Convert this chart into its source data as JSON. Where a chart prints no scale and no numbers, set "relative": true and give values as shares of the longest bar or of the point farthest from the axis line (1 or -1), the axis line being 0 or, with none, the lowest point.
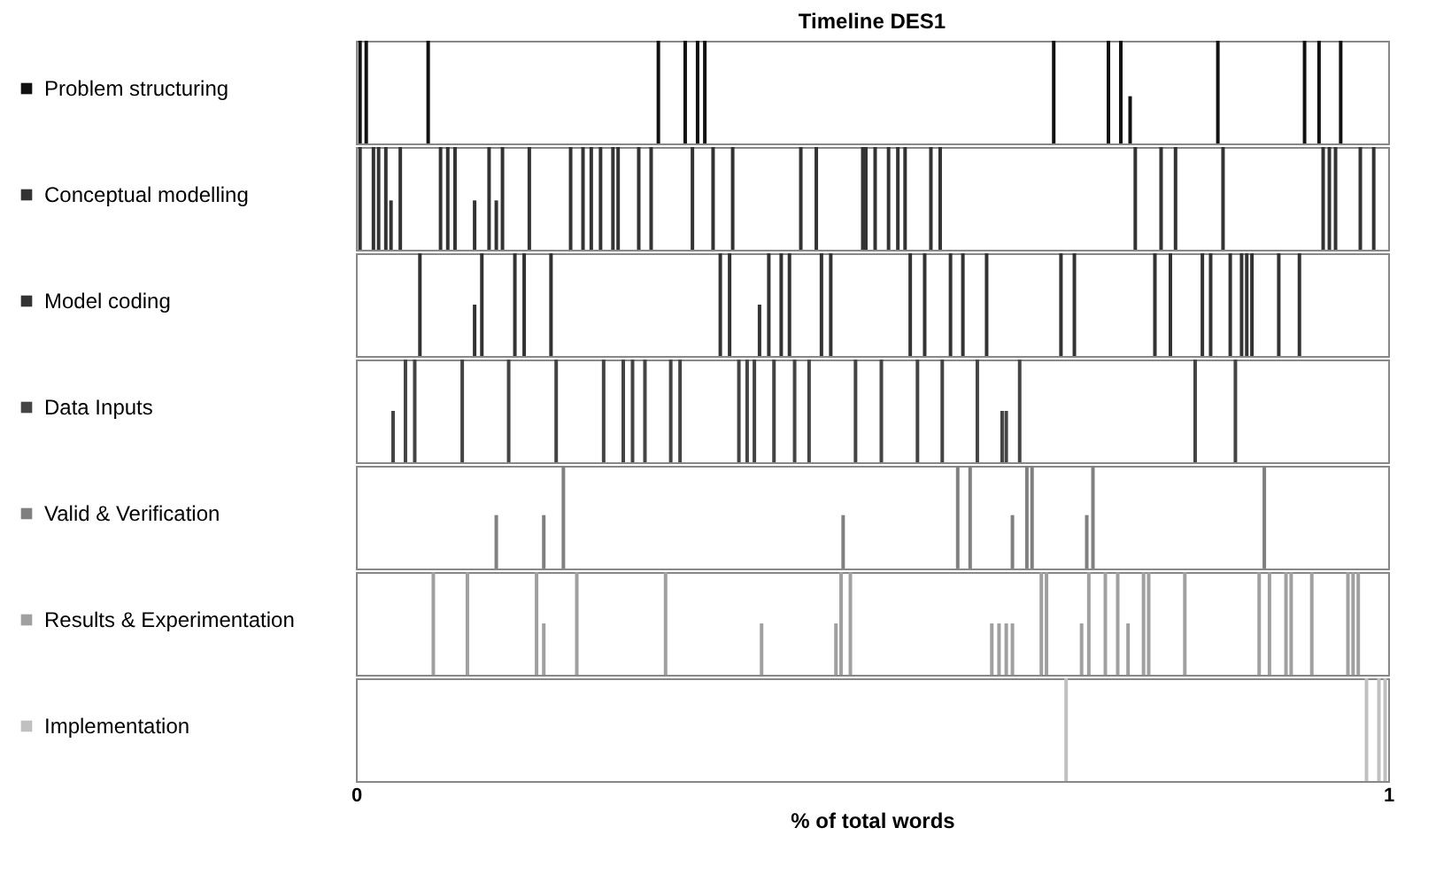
{
  "chart_data": [
    {
      "type": "bar",
      "relative": true,
      "title": "Timeline DES1",
      "xlim": [
        0,
        1
      ],
      "tick_labels": false,
      "legend": "left",
      "x": [
        0.004,
        0.01,
        0.07,
        0.293,
        0.319,
        0.331,
        0.338,
        0.676,
        0.729,
        0.741,
        0.75,
        0.835,
        0.919,
        0.933,
        0.954
      ],
      "series": [
        {
          "name": "Problem structuring",
          "color": "#111111",
          "values": [
            1,
            1,
            1,
            1,
            1,
            1,
            1,
            1,
            1,
            1,
            0.46,
            1,
            1,
            1,
            1
          ]
        }
      ]
    },
    {
      "type": "bar",
      "relative": true,
      "xlim": [
        0,
        1
      ],
      "tick_labels": false,
      "legend": "left",
      "x": [
        0.004,
        0.017,
        0.022,
        0.029,
        0.034,
        0.043,
        0.082,
        0.089,
        0.096,
        0.115,
        0.129,
        0.136,
        0.142,
        0.168,
        0.208,
        0.22,
        0.228,
        0.237,
        0.249,
        0.254,
        0.274,
        0.286,
        0.326,
        0.346,
        0.365,
        0.431,
        0.446,
        0.491,
        0.494,
        0.503,
        0.516,
        0.525,
        0.532,
        0.557,
        0.566,
        0.755,
        0.78,
        0.794,
        0.84,
        0.937,
        0.943,
        0.949,
        0.973,
        0.986
      ],
      "series": [
        {
          "name": "Conceptual modelling",
          "color": "#333333",
          "values": [
            1,
            1,
            1,
            1,
            0.48,
            1,
            1,
            1,
            1,
            0.48,
            1,
            0.48,
            1,
            1,
            1,
            1,
            1,
            1,
            1,
            1,
            1,
            1,
            1,
            1,
            1,
            1,
            1,
            1,
            1,
            1,
            1,
            1,
            1,
            1,
            1,
            1,
            1,
            1,
            1,
            1,
            1,
            1,
            1,
            1
          ]
        }
      ]
    },
    {
      "type": "bar",
      "relative": true,
      "xlim": [
        0,
        1
      ],
      "tick_labels": false,
      "legend": "left",
      "x": [
        0.062,
        0.115,
        0.122,
        0.154,
        0.163,
        0.189,
        0.353,
        0.362,
        0.391,
        0.4,
        0.412,
        0.42,
        0.451,
        0.46,
        0.537,
        0.551,
        0.576,
        0.588,
        0.611,
        0.683,
        0.696,
        0.774,
        0.789,
        0.82,
        0.828,
        0.847,
        0.858,
        0.863,
        0.868,
        0.894,
        0.914
      ],
      "series": [
        {
          "name": "Model coding",
          "color": "#333333",
          "values": [
            1,
            0.5,
            1,
            1,
            1,
            1,
            1,
            1,
            0.5,
            1,
            1,
            1,
            1,
            1,
            1,
            1,
            1,
            1,
            1,
            1,
            1,
            1,
            1,
            1,
            1,
            1,
            1,
            1,
            1,
            1,
            1
          ]
        }
      ]
    },
    {
      "type": "bar",
      "relative": true,
      "xlim": [
        0,
        1
      ],
      "tick_labels": false,
      "legend": "left",
      "x": [
        0.036,
        0.048,
        0.057,
        0.103,
        0.148,
        0.194,
        0.24,
        0.259,
        0.268,
        0.28,
        0.305,
        0.314,
        0.371,
        0.379,
        0.386,
        0.405,
        0.425,
        0.439,
        0.484,
        0.509,
        0.544,
        0.568,
        0.602,
        0.626,
        0.63,
        0.643,
        0.813,
        0.852
      ],
      "series": [
        {
          "name": "Data Inputs",
          "color": "#444444",
          "values": [
            0.5,
            1,
            1,
            1,
            1,
            1,
            1,
            1,
            1,
            1,
            1,
            1,
            1,
            1,
            1,
            1,
            1,
            1,
            1,
            1,
            1,
            1,
            1,
            0.5,
            0.5,
            1,
            1,
            1
          ]
        }
      ]
    },
    {
      "type": "bar",
      "relative": true,
      "xlim": [
        0,
        1
      ],
      "tick_labels": false,
      "legend": "left",
      "x": [
        0.136,
        0.182,
        0.201,
        0.472,
        0.583,
        0.595,
        0.636,
        0.65,
        0.655,
        0.708,
        0.714,
        0.88
      ],
      "series": [
        {
          "name": "Valid & Verification",
          "color": "#808080",
          "values": [
            0.52,
            0.52,
            1,
            0.52,
            1,
            1,
            0.52,
            1,
            1,
            0.52,
            1,
            1
          ]
        }
      ]
    },
    {
      "type": "bar",
      "relative": true,
      "xlim": [
        0,
        1
      ],
      "tick_labels": false,
      "legend": "left",
      "x": [
        0.075,
        0.108,
        0.175,
        0.182,
        0.214,
        0.3,
        0.393,
        0.465,
        0.47,
        0.479,
        0.616,
        0.623,
        0.63,
        0.636,
        0.664,
        0.669,
        0.703,
        0.71,
        0.726,
        0.738,
        0.748,
        0.763,
        0.768,
        0.803,
        0.875,
        0.885,
        0.901,
        0.906,
        0.926,
        0.961,
        0.966,
        0.971
      ],
      "series": [
        {
          "name": "Results & Experimentation",
          "color": "#a0a0a0",
          "values": [
            1,
            1,
            1,
            0.5,
            1,
            1,
            0.5,
            0.5,
            1,
            1,
            0.5,
            0.5,
            0.5,
            0.5,
            1,
            1,
            0.5,
            1,
            1,
            1,
            0.5,
            1,
            1,
            1,
            1,
            1,
            1,
            1,
            1,
            1,
            1,
            1
          ]
        }
      ]
    },
    {
      "type": "bar",
      "relative": true,
      "xlim": [
        0,
        1
      ],
      "xticks": [
        0,
        1
      ],
      "xlabel": "% of total words",
      "tick_labels": "x",
      "legend": "left",
      "x": [
        0.688,
        0.979,
        0.991,
        0.997
      ],
      "series": [
        {
          "name": "Implementation",
          "color": "#c0c0c0",
          "values": [
            1,
            1,
            1,
            1
          ]
        }
      ]
    }
  ]
}
